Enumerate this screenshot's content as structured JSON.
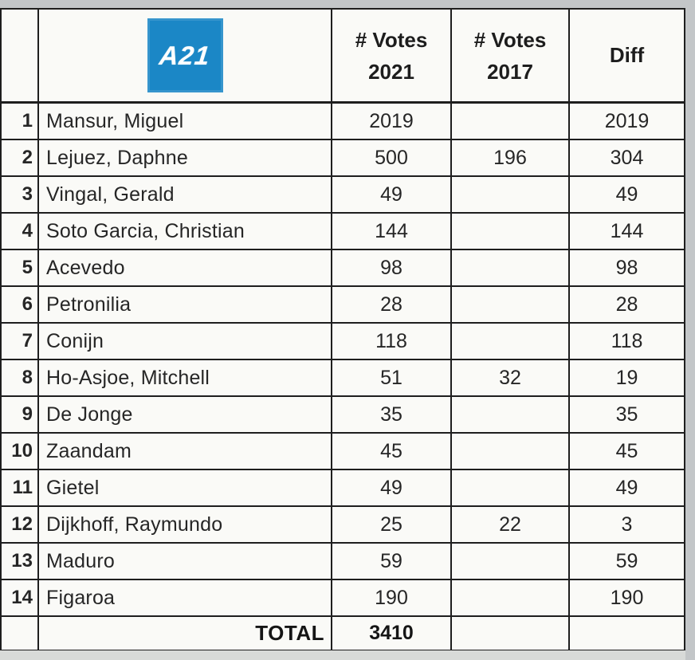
{
  "logo": {
    "text": "A21",
    "bg": "#1b87c6",
    "fg": "#ffffff"
  },
  "colors": {
    "grid_line": "#1e1e1e",
    "cell_background": "#fafaf7",
    "photo_margin_gray": "#c3c6c8",
    "text": "#262626"
  },
  "header": {
    "rank": "",
    "votes_2021": {
      "line1": "# Votes",
      "line2": "2021"
    },
    "votes_2017": {
      "line1": "# Votes",
      "line2": "2017"
    },
    "diff": "Diff"
  },
  "table": {
    "rows": [
      {
        "rank": "1",
        "name": "Mansur, Miguel",
        "votes_2021": "2019",
        "votes_2017": "",
        "diff": "2019"
      },
      {
        "rank": "2",
        "name": "Lejuez, Daphne",
        "votes_2021": "500",
        "votes_2017": "196",
        "diff": "304"
      },
      {
        "rank": "3",
        "name": "Vingal, Gerald",
        "votes_2021": "49",
        "votes_2017": "",
        "diff": "49"
      },
      {
        "rank": "4",
        "name": "Soto Garcia, Christian",
        "votes_2021": "144",
        "votes_2017": "",
        "diff": "144"
      },
      {
        "rank": "5",
        "name": "Acevedo",
        "votes_2021": "98",
        "votes_2017": "",
        "diff": "98"
      },
      {
        "rank": "6",
        "name": "Petronilia",
        "votes_2021": "28",
        "votes_2017": "",
        "diff": "28"
      },
      {
        "rank": "7",
        "name": "Conijn",
        "votes_2021": "118",
        "votes_2017": "",
        "diff": "118"
      },
      {
        "rank": "8",
        "name": "Ho-Asjoe, Mitchell",
        "votes_2021": "51",
        "votes_2017": "32",
        "diff": "19"
      },
      {
        "rank": "9",
        "name": "De Jonge",
        "votes_2021": "35",
        "votes_2017": "",
        "diff": "35"
      },
      {
        "rank": "10",
        "name": "Zaandam",
        "votes_2021": "45",
        "votes_2017": "",
        "diff": "45"
      },
      {
        "rank": "11",
        "name": "Gietel",
        "votes_2021": "49",
        "votes_2017": "",
        "diff": "49"
      },
      {
        "rank": "12",
        "name": "Dijkhoff, Raymundo",
        "votes_2021": "25",
        "votes_2017": "22",
        "diff": "3"
      },
      {
        "rank": "13",
        "name": "Maduro",
        "votes_2021": "59",
        "votes_2017": "",
        "diff": "59"
      },
      {
        "rank": "14",
        "name": "Figaroa",
        "votes_2021": "190",
        "votes_2017": "",
        "diff": "190"
      }
    ],
    "total": {
      "rank": "",
      "label": "TOTAL",
      "votes_2021": "3410",
      "votes_2017": "",
      "diff": ""
    }
  }
}
